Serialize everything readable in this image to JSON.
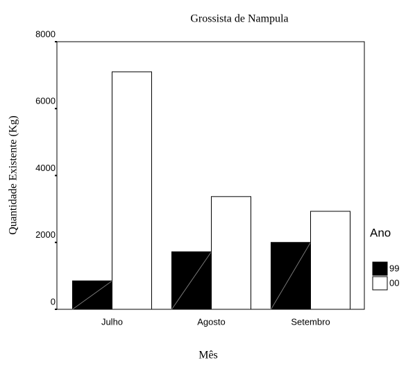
{
  "chart_data": {
    "type": "bar",
    "title": "Grossista de Nampula",
    "x_label": "Mês",
    "y_label": "Quantidade Existente (Kg)",
    "categories": [
      "Julho",
      "Agosto",
      "Setembro"
    ],
    "series": [
      {
        "name": "99",
        "color": "#000000",
        "values": [
          850,
          1720,
          2000
        ]
      },
      {
        "name": "00",
        "color": "#ffffff",
        "values": [
          7100,
          3370,
          2930
        ]
      }
    ],
    "legend_title": "Ano",
    "ylim": [
      0,
      8000
    ],
    "yticks": [
      0,
      2000,
      4000,
      6000,
      8000
    ],
    "grid": false
  }
}
